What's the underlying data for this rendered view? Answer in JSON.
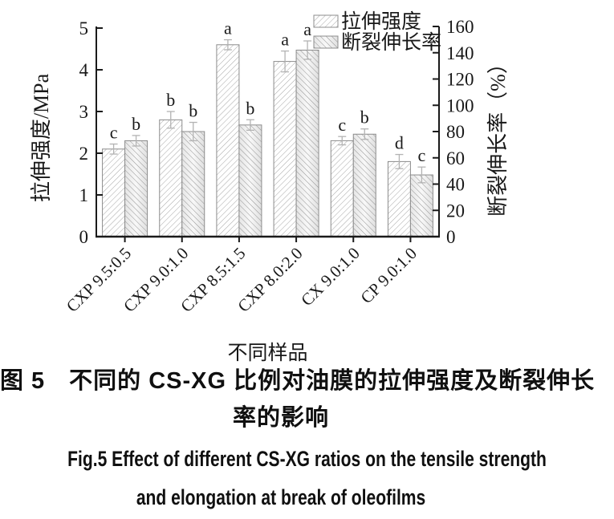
{
  "chart_data": {
    "type": "bar",
    "title": "",
    "xlabel": "不同样品",
    "categories": [
      "CXP 9.5:0.5",
      "CXP 9.0:1.0",
      "CXP 8.5:1.5",
      "CXP 8.0:2.0",
      "CX 9.0:1.0",
      "CP 9.0:1.0"
    ],
    "series": [
      {
        "name": "拉伸强度",
        "axis": "left",
        "unit": "MPa",
        "hatch": "forward-diagonal",
        "values": [
          2.1,
          2.8,
          4.6,
          4.2,
          2.3,
          1.8
        ],
        "errors": [
          0.12,
          0.2,
          0.12,
          0.25,
          0.1,
          0.17
        ],
        "sig_letters": [
          "c",
          "b",
          "a",
          "a",
          "c",
          "d"
        ]
      },
      {
        "name": "断裂伸长率",
        "axis": "right",
        "unit": "%",
        "hatch": "backward-diagonal",
        "values": [
          73,
          80,
          85,
          142,
          78,
          47
        ],
        "errors": [
          4,
          7,
          4,
          7,
          4,
          6
        ],
        "sig_letters": [
          "b",
          "b",
          "b",
          "a",
          "b",
          "c"
        ]
      }
    ],
    "left_axis": {
      "label": "拉伸强度/MPa",
      "min": 0,
      "max": 5,
      "ticks": [
        0,
        1,
        2,
        3,
        4,
        5
      ]
    },
    "right_axis": {
      "label": "断裂伸长率（%）",
      "min": 0,
      "max": 160,
      "ticks": [
        0,
        20,
        40,
        60,
        80,
        100,
        120,
        140,
        160
      ]
    },
    "legend": {
      "position": "top-right-inside",
      "entries": [
        "拉伸强度",
        "断裂伸长率"
      ]
    },
    "grid": false
  },
  "caption": {
    "cn_line1": "图 5　不同的 CS-XG 比例对油膜的拉伸强度及断裂伸长",
    "cn_line2": "率的影响",
    "en_line1": "Fig.5   Effect of different CS-XG ratios on the tensile strength",
    "en_line2": "and elongation at break of oleofilms"
  },
  "colors": {
    "axis": "#1a1a1a",
    "text": "#181818",
    "bar_outline": "#8c8c8c",
    "hatch_forward": "#a6a6a6",
    "hatch_backward": "#949494",
    "error_bar": "#b3b3b3"
  }
}
